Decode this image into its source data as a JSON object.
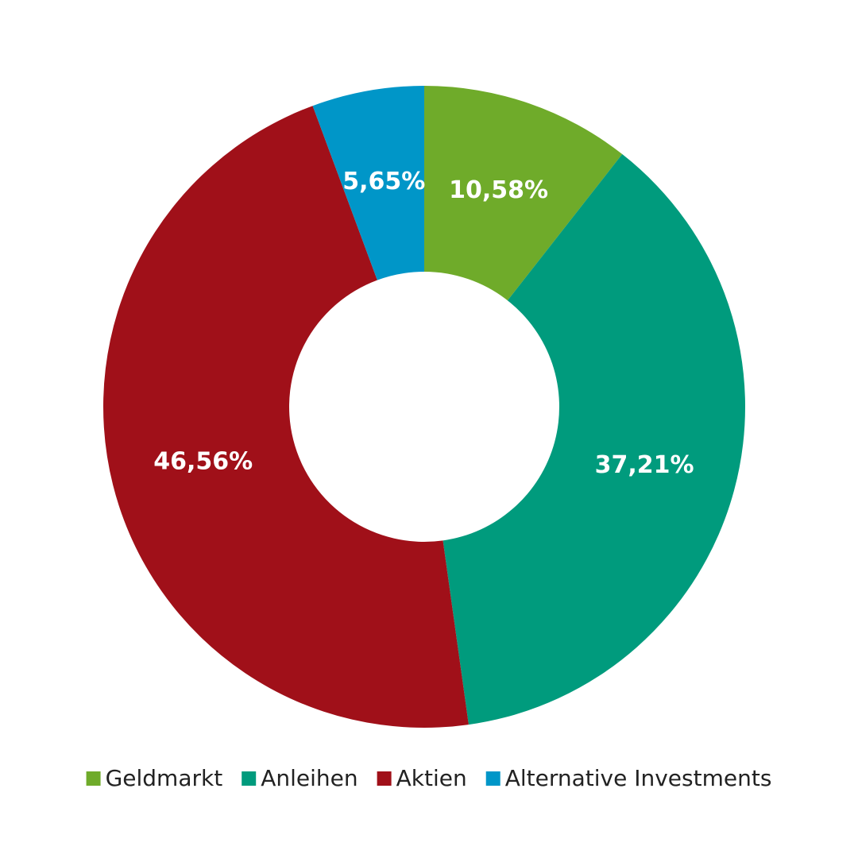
{
  "chart_data": {
    "type": "donut",
    "categories": [
      "Geldmarkt",
      "Anleihen",
      "Aktien",
      "Alternative Investments"
    ],
    "values": [
      10.58,
      37.21,
      46.56,
      5.65
    ],
    "value_labels": [
      "10,58%",
      "37,21%",
      "46,56%",
      "5,65%"
    ],
    "colors": [
      "#6fab2a",
      "#009b7d",
      "#a01019",
      "#0096c8"
    ],
    "legend": "bottom"
  }
}
